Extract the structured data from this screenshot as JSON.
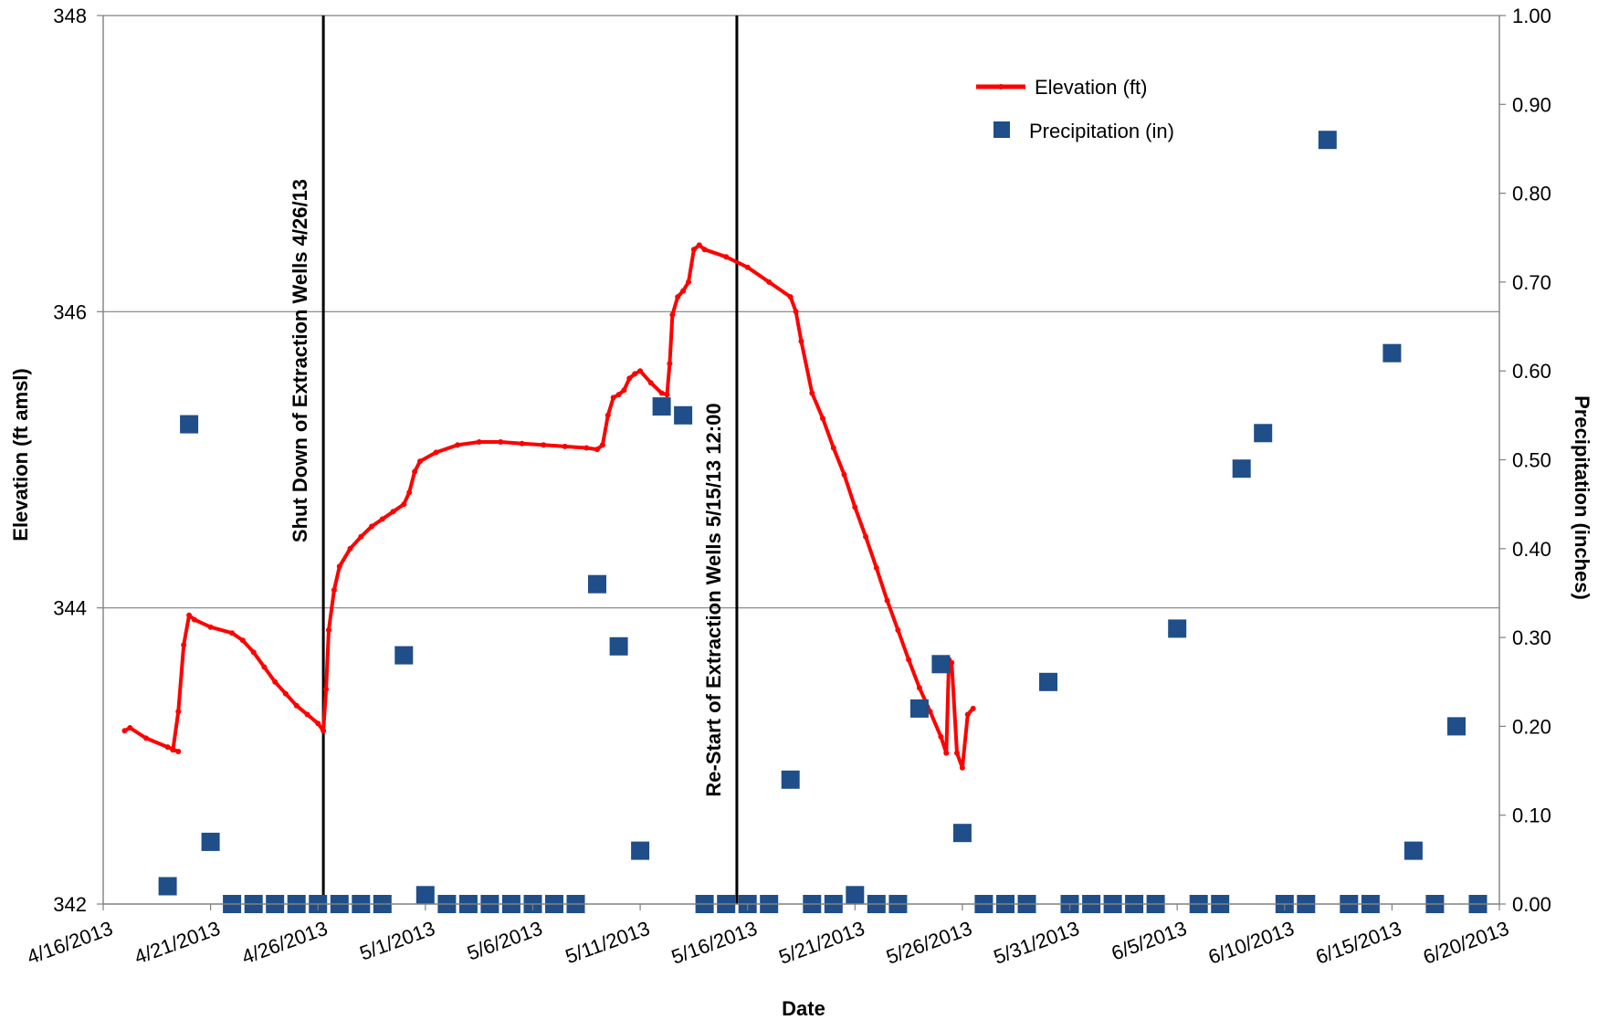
{
  "chart_data": {
    "type": "line",
    "title": "",
    "xlabel": "Date",
    "ylabel": "Elevation (ft amsl)",
    "y2label": "Precipitation (inches)",
    "x_ticks": [
      "4/16/2013",
      "4/21/2013",
      "4/26/2013",
      "5/1/2013",
      "5/6/2013",
      "5/11/2013",
      "5/16/2013",
      "5/21/2013",
      "5/26/2013",
      "5/31/2013",
      "6/5/2013",
      "6/10/2013",
      "6/15/2013",
      "6/20/2013"
    ],
    "xlim": [
      "2013-04-16",
      "2013-06-20"
    ],
    "ylim": [
      342,
      348
    ],
    "y_ticks": [
      "342",
      "344",
      "346",
      "348"
    ],
    "y2lim": [
      0,
      1
    ],
    "y2_ticks": [
      "0.00",
      "0.10",
      "0.20",
      "0.30",
      "0.40",
      "0.50",
      "0.60",
      "0.70",
      "0.80",
      "0.90",
      "1.00"
    ],
    "grid": "horizontal major gridlines",
    "legend_position": "top-right",
    "series": [
      {
        "name": "Elevation (ft)",
        "axis": "left",
        "color": "#ff0000",
        "style": "line with small markers",
        "points": [
          [
            "2013-04-17 00:00",
            343.17
          ],
          [
            "2013-04-17 06:00",
            343.19
          ],
          [
            "2013-04-18 00:00",
            343.12
          ],
          [
            "2013-04-19 00:00",
            343.06
          ],
          [
            "2013-04-19 12:00",
            343.03
          ],
          [
            "2013-04-19 06:00",
            343.04
          ],
          [
            "2013-04-19 12:00",
            343.3
          ],
          [
            "2013-04-19 18:00",
            343.75
          ],
          [
            "2013-04-20 00:00",
            343.95
          ],
          [
            "2013-04-20 06:00",
            343.92
          ],
          [
            "2013-04-21 00:00",
            343.87
          ],
          [
            "2013-04-22 00:00",
            343.83
          ],
          [
            "2013-04-22 12:00",
            343.78
          ],
          [
            "2013-04-23 00:00",
            343.7
          ],
          [
            "2013-04-23 12:00",
            343.6
          ],
          [
            "2013-04-24 00:00",
            343.5
          ],
          [
            "2013-04-24 12:00",
            343.42
          ],
          [
            "2013-04-25 00:00",
            343.34
          ],
          [
            "2013-04-25 12:00",
            343.28
          ],
          [
            "2013-04-26 00:00",
            343.22
          ],
          [
            "2013-04-26 06:00",
            343.17
          ],
          [
            "2013-04-26 09:00",
            343.45
          ],
          [
            "2013-04-26 12:00",
            343.85
          ],
          [
            "2013-04-26 18:00",
            344.12
          ],
          [
            "2013-04-27 00:00",
            344.28
          ],
          [
            "2013-04-27 12:00",
            344.4
          ],
          [
            "2013-04-28 00:00",
            344.48
          ],
          [
            "2013-04-28 12:00",
            344.55
          ],
          [
            "2013-04-29 00:00",
            344.6
          ],
          [
            "2013-04-29 12:00",
            344.65
          ],
          [
            "2013-04-30 00:00",
            344.7
          ],
          [
            "2013-04-30 06:00",
            344.78
          ],
          [
            "2013-04-30 12:00",
            344.92
          ],
          [
            "2013-04-30 18:00",
            344.99
          ],
          [
            "2013-05-01 12:00",
            345.05
          ],
          [
            "2013-05-02 12:00",
            345.1
          ],
          [
            "2013-05-03 12:00",
            345.12
          ],
          [
            "2013-05-04 12:00",
            345.12
          ],
          [
            "2013-05-05 12:00",
            345.11
          ],
          [
            "2013-05-06 12:00",
            345.1
          ],
          [
            "2013-05-07 12:00",
            345.09
          ],
          [
            "2013-05-08 12:00",
            345.08
          ],
          [
            "2013-05-09 00:00",
            345.07
          ],
          [
            "2013-05-09 06:00",
            345.1
          ],
          [
            "2013-05-09 12:00",
            345.3
          ],
          [
            "2013-05-09 18:00",
            345.42
          ],
          [
            "2013-05-10 00:00",
            345.44
          ],
          [
            "2013-05-10 06:00",
            345.47
          ],
          [
            "2013-05-10 12:00",
            345.55
          ],
          [
            "2013-05-10 18:00",
            345.58
          ],
          [
            "2013-05-11 00:00",
            345.6
          ],
          [
            "2013-05-11 12:00",
            345.52
          ],
          [
            "2013-05-12 00:00",
            345.45
          ],
          [
            "2013-05-12 06:00",
            345.44
          ],
          [
            "2013-05-12 09:00",
            345.65
          ],
          [
            "2013-05-12 12:00",
            345.98
          ],
          [
            "2013-05-12 18:00",
            346.1
          ],
          [
            "2013-05-13 00:00",
            346.14
          ],
          [
            "2013-05-13 06:00",
            346.2
          ],
          [
            "2013-05-13 12:00",
            346.42
          ],
          [
            "2013-05-13 18:00",
            346.45
          ],
          [
            "2013-05-14 00:00",
            346.42
          ],
          [
            "2013-05-15 00:00",
            346.37
          ],
          [
            "2013-05-16 00:00",
            346.3
          ],
          [
            "2013-05-17 00:00",
            346.2
          ],
          [
            "2013-05-18 00:00",
            346.1
          ],
          [
            "2013-05-18 06:00",
            346.0
          ],
          [
            "2013-05-18 12:00",
            345.8
          ],
          [
            "2013-05-19 00:00",
            345.45
          ],
          [
            "2013-05-19 12:00",
            345.28
          ],
          [
            "2013-05-20 00:00",
            345.08
          ],
          [
            "2013-05-20 12:00",
            344.9
          ],
          [
            "2013-05-21 00:00",
            344.68
          ],
          [
            "2013-05-21 12:00",
            344.48
          ],
          [
            "2013-05-22 00:00",
            344.27
          ],
          [
            "2013-05-22 12:00",
            344.05
          ],
          [
            "2013-05-23 00:00",
            343.85
          ],
          [
            "2013-05-23 12:00",
            343.65
          ],
          [
            "2013-05-24 00:00",
            343.46
          ],
          [
            "2013-05-24 12:00",
            343.3
          ],
          [
            "2013-05-25 00:00",
            343.13
          ],
          [
            "2013-05-25 06:00",
            343.02
          ],
          [
            "2013-05-25 09:00",
            343.65
          ],
          [
            "2013-05-25 12:00",
            343.63
          ],
          [
            "2013-05-25 18:00",
            343.02
          ],
          [
            "2013-05-26 00:00",
            342.92
          ],
          [
            "2013-05-26 06:00",
            343.28
          ],
          [
            "2013-05-26 12:00",
            343.32
          ]
        ]
      },
      {
        "name": "Precipitation (in)",
        "axis": "right",
        "color": "#1f4e89",
        "style": "square markers",
        "points": [
          [
            "2013-04-19",
            0.02
          ],
          [
            "2013-04-20",
            0.54
          ],
          [
            "2013-04-21",
            0.07
          ],
          [
            "2013-04-22",
            0.0
          ],
          [
            "2013-04-23",
            0.0
          ],
          [
            "2013-04-24",
            0.0
          ],
          [
            "2013-04-25",
            0.0
          ],
          [
            "2013-04-26",
            0.0
          ],
          [
            "2013-04-27",
            0.0
          ],
          [
            "2013-04-28",
            0.0
          ],
          [
            "2013-04-29",
            0.0
          ],
          [
            "2013-04-30",
            0.28
          ],
          [
            "2013-05-01",
            0.01
          ],
          [
            "2013-05-02",
            0.0
          ],
          [
            "2013-05-03",
            0.0
          ],
          [
            "2013-05-04",
            0.0
          ],
          [
            "2013-05-05",
            0.0
          ],
          [
            "2013-05-06",
            0.0
          ],
          [
            "2013-05-07",
            0.0
          ],
          [
            "2013-05-08",
            0.0
          ],
          [
            "2013-05-09",
            0.36
          ],
          [
            "2013-05-10",
            0.29
          ],
          [
            "2013-05-11",
            0.06
          ],
          [
            "2013-05-12",
            0.56
          ],
          [
            "2013-05-13",
            0.55
          ],
          [
            "2013-05-14",
            0.0
          ],
          [
            "2013-05-15",
            0.0
          ],
          [
            "2013-05-16",
            0.0
          ],
          [
            "2013-05-17",
            0.0
          ],
          [
            "2013-05-18",
            0.14
          ],
          [
            "2013-05-19",
            0.0
          ],
          [
            "2013-05-20",
            0.0
          ],
          [
            "2013-05-21",
            0.01
          ],
          [
            "2013-05-22",
            0.0
          ],
          [
            "2013-05-23",
            0.0
          ],
          [
            "2013-05-24",
            0.22
          ],
          [
            "2013-05-25",
            0.27
          ],
          [
            "2013-05-26",
            0.08
          ],
          [
            "2013-05-27",
            0.0
          ],
          [
            "2013-05-28",
            0.0
          ],
          [
            "2013-05-29",
            0.0
          ],
          [
            "2013-05-30",
            0.25
          ],
          [
            "2013-05-31",
            0.0
          ],
          [
            "2013-06-01",
            0.0
          ],
          [
            "2013-06-02",
            0.0
          ],
          [
            "2013-06-03",
            0.0
          ],
          [
            "2013-06-04",
            0.0
          ],
          [
            "2013-06-05",
            0.31
          ],
          [
            "2013-06-06",
            0.0
          ],
          [
            "2013-06-07",
            0.0
          ],
          [
            "2013-06-08",
            0.49
          ],
          [
            "2013-06-09",
            0.53
          ],
          [
            "2013-06-10",
            0.0
          ],
          [
            "2013-06-11",
            0.0
          ],
          [
            "2013-06-12",
            0.86
          ],
          [
            "2013-06-13",
            0.0
          ],
          [
            "2013-06-14",
            0.0
          ],
          [
            "2013-06-15",
            0.62
          ],
          [
            "2013-06-16",
            0.06
          ],
          [
            "2013-06-17",
            0.0
          ],
          [
            "2013-06-18",
            0.2
          ],
          [
            "2013-06-19",
            0.0
          ]
        ]
      }
    ],
    "annotations": [
      {
        "label": "Shut Down of Extraction Wells  4/26/13",
        "x": "2013-04-26 06:00"
      },
      {
        "label": "Re-Start of Extraction Wells 5/15/13 12:00",
        "x": "2013-05-15 12:00"
      }
    ],
    "colors": {
      "annotation_line": "#000000",
      "gridline": "#808080",
      "axis": "#808080"
    }
  }
}
